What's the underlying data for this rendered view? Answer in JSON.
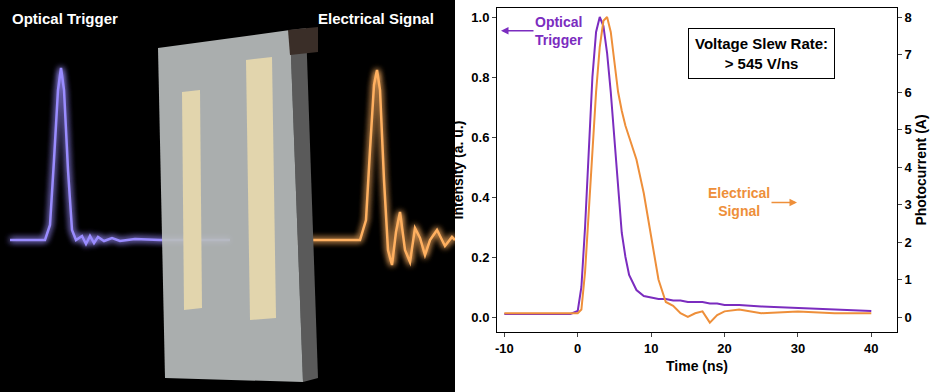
{
  "chart_data": {
    "type": "line",
    "x": [
      -10,
      -5,
      -1,
      0,
      0.5,
      1,
      1.5,
      2,
      2.5,
      3,
      3.5,
      4,
      4.5,
      5,
      5.5,
      6,
      6.5,
      7,
      8,
      9,
      10,
      11,
      12,
      13,
      14,
      15,
      16,
      17,
      18,
      19,
      20,
      22,
      25,
      30,
      35,
      40
    ],
    "xlim": [
      -11,
      43.5
    ],
    "xticks": [
      -10,
      0,
      10,
      20,
      30,
      40
    ],
    "xlabel": "Time (ns)",
    "ylabel": "Intensity (a. u.)",
    "y2label": "Photocurrent (A)",
    "ylim": [
      -0.05,
      1.03
    ],
    "yticks": [
      {
        "value": 0,
        "label": "0.0"
      },
      {
        "value": 0.2,
        "label": "0.2"
      },
      {
        "value": 0.4,
        "label": "0.4"
      },
      {
        "value": 0.6,
        "label": "0.6"
      },
      {
        "value": 0.8,
        "label": "0.8"
      },
      {
        "value": 1,
        "label": "1.0"
      }
    ],
    "y2lim": [
      -0.4,
      8.24
    ],
    "y2ticks": [
      0,
      1,
      2,
      3,
      4,
      5,
      6,
      7,
      8
    ],
    "grid": false,
    "series": [
      {
        "name": "Optical Trigger",
        "color": "#7b2cbf",
        "values": [
          0.01,
          0.01,
          0.01,
          0.02,
          0.1,
          0.3,
          0.55,
          0.8,
          0.95,
          1.0,
          0.97,
          0.88,
          0.75,
          0.6,
          0.42,
          0.28,
          0.2,
          0.14,
          0.09,
          0.07,
          0.065,
          0.06,
          0.06,
          0.055,
          0.055,
          0.05,
          0.05,
          0.05,
          0.045,
          0.045,
          0.04,
          0.04,
          0.035,
          0.03,
          0.025,
          0.02
        ]
      },
      {
        "name": "Electrical Signal",
        "color": "#ee8f3a",
        "axis": "y2",
        "values": [
          0.1,
          0.1,
          0.1,
          0.1,
          0.2,
          1.2,
          2.8,
          4.5,
          6.0,
          7.2,
          7.9,
          8.0,
          7.6,
          6.8,
          6.0,
          5.5,
          5.1,
          4.8,
          4.2,
          3.3,
          2.2,
          1.0,
          0.4,
          0.3,
          0.1,
          0.0,
          0.1,
          0.15,
          -0.15,
          0.05,
          0.15,
          0.2,
          0.1,
          0.15,
          0.1,
          0.1
        ]
      }
    ],
    "annotations": [
      {
        "text": [
          "Voltage Slew Rate:",
          "> 545 V/ns"
        ]
      }
    ]
  },
  "illustration": {
    "labels": [
      "Optical Trigger",
      "Electrical Signal"
    ]
  }
}
